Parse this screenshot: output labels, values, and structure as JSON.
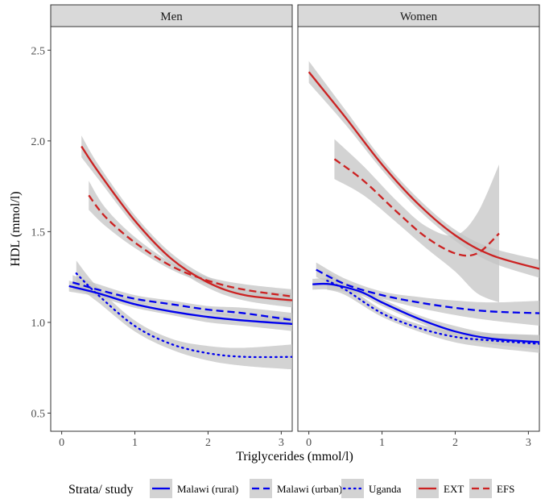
{
  "chart_data": {
    "type": "line",
    "xlabel": "Triglycerides (mmol/l)",
    "ylabel": "HDL (mmol/l)",
    "xlim": [
      -0.15,
      3.15
    ],
    "ylim": [
      0.4,
      2.63
    ],
    "x_ticks": [
      0,
      1,
      2,
      3
    ],
    "y_ticks": [
      0.5,
      1.0,
      1.5,
      2.0,
      2.5
    ],
    "x_tick_labels": [
      "0",
      "1",
      "2",
      "3"
    ],
    "y_tick_labels": [
      "0.5",
      "1.0",
      "1.5",
      "2.0",
      "2.5"
    ],
    "grid": false,
    "legend": {
      "title": "Strata/ study",
      "position": "bottom",
      "items": [
        {
          "name": "Malawi (rural)",
          "color": "#0000ee",
          "dash": "solid"
        },
        {
          "name": "Malawi (urban)",
          "color": "#0000ee",
          "dash": "dashed"
        },
        {
          "name": "Uganda",
          "color": "#0000ee",
          "dash": "dotted"
        },
        {
          "name": "EXT",
          "color": "#cc2222",
          "dash": "solid"
        },
        {
          "name": "EFS",
          "color": "#cc2222",
          "dash": "dashed"
        }
      ]
    },
    "panels": [
      {
        "strip": "Men",
        "series": [
          {
            "name": "Malawi (rural)",
            "x": [
              0.1,
              0.5,
              1.0,
              1.5,
              2.0,
              2.5,
              3.2
            ],
            "y": [
              1.2,
              1.16,
              1.1,
              1.06,
              1.03,
              1.01,
              0.99
            ],
            "ci": [
              0.03,
              0.02,
              0.02,
              0.02,
              0.03,
              0.03,
              0.04
            ]
          },
          {
            "name": "Malawi (urban)",
            "x": [
              0.15,
              0.5,
              1.0,
              1.5,
              2.0,
              2.5,
              3.2
            ],
            "y": [
              1.22,
              1.18,
              1.13,
              1.1,
              1.07,
              1.05,
              1.01
            ],
            "ci": [
              0.04,
              0.03,
              0.02,
              0.02,
              0.02,
              0.03,
              0.04
            ]
          },
          {
            "name": "Uganda",
            "x": [
              0.2,
              0.5,
              1.0,
              1.5,
              2.0,
              2.5,
              3.2
            ],
            "y": [
              1.27,
              1.15,
              0.98,
              0.88,
              0.83,
              0.81,
              0.81
            ],
            "ci": [
              0.07,
              0.04,
              0.03,
              0.03,
              0.04,
              0.05,
              0.07
            ]
          },
          {
            "name": "EXT",
            "x": [
              0.27,
              0.5,
              1.0,
              1.5,
              2.0,
              2.5,
              3.2
            ],
            "y": [
              1.97,
              1.83,
              1.56,
              1.35,
              1.22,
              1.15,
              1.12
            ],
            "ci": [
              0.06,
              0.04,
              0.03,
              0.03,
              0.03,
              0.03,
              0.04
            ]
          },
          {
            "name": "EFS",
            "x": [
              0.37,
              0.6,
              1.0,
              1.5,
              2.0,
              2.5,
              3.2
            ],
            "y": [
              1.7,
              1.58,
              1.44,
              1.31,
              1.23,
              1.18,
              1.14
            ],
            "ci": [
              0.08,
              0.05,
              0.03,
              0.02,
              0.02,
              0.03,
              0.04
            ]
          }
        ]
      },
      {
        "strip": "Women",
        "series": [
          {
            "name": "Malawi (rural)",
            "x": [
              0.05,
              0.3,
              0.7,
              1.0,
              1.5,
              2.0,
              2.5,
              3.2
            ],
            "y": [
              1.21,
              1.21,
              1.17,
              1.11,
              1.02,
              0.95,
              0.91,
              0.89
            ],
            "ci": [
              0.03,
              0.03,
              0.02,
              0.02,
              0.02,
              0.03,
              0.03,
              0.04
            ]
          },
          {
            "name": "Malawi (urban)",
            "x": [
              0.1,
              0.5,
              1.0,
              1.5,
              2.0,
              2.5,
              3.2
            ],
            "y": [
              1.29,
              1.21,
              1.15,
              1.11,
              1.08,
              1.06,
              1.05
            ],
            "ci": [
              0.04,
              0.03,
              0.02,
              0.03,
              0.04,
              0.05,
              0.07
            ]
          },
          {
            "name": "Uganda",
            "x": [
              0.25,
              0.5,
              1.0,
              1.5,
              2.0,
              2.5,
              3.2
            ],
            "y": [
              1.23,
              1.18,
              1.05,
              0.97,
              0.92,
              0.9,
              0.88
            ],
            "ci": [
              0.05,
              0.03,
              0.02,
              0.02,
              0.03,
              0.04,
              0.05
            ]
          },
          {
            "name": "EXT",
            "x": [
              0.0,
              0.5,
              1.0,
              1.5,
              2.0,
              2.5,
              3.2
            ],
            "y": [
              2.38,
              2.13,
              1.87,
              1.65,
              1.48,
              1.37,
              1.29
            ],
            "ci": [
              0.06,
              0.04,
              0.03,
              0.03,
              0.03,
              0.04,
              0.05
            ]
          },
          {
            "name": "EFS",
            "x": [
              0.35,
              0.75,
              1.2,
              1.6,
              2.0,
              2.3,
              2.6
            ],
            "y": [
              1.9,
              1.78,
              1.61,
              1.47,
              1.38,
              1.38,
              1.49
            ],
            "ci": [
              0.11,
              0.08,
              0.06,
              0.06,
              0.1,
              0.22,
              0.38
            ]
          }
        ]
      }
    ]
  }
}
